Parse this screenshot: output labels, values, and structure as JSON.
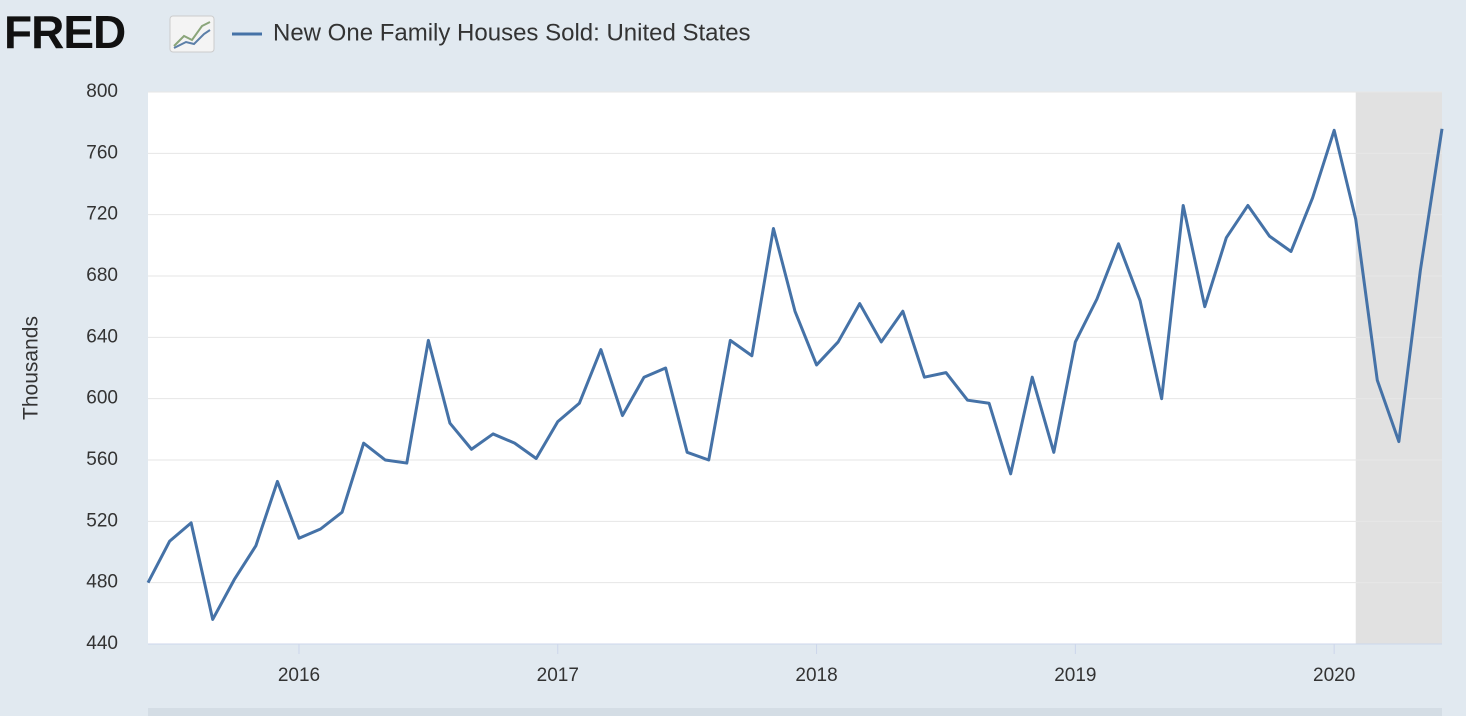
{
  "chart_data": {
    "type": "line",
    "logo": "FRED",
    "title": "New One Family Houses Sold: United States",
    "y_label": "Thousands",
    "x": [
      "2015-06",
      "2015-07",
      "2015-08",
      "2015-09",
      "2015-10",
      "2015-11",
      "2015-12",
      "2016-01",
      "2016-02",
      "2016-03",
      "2016-04",
      "2016-05",
      "2016-06",
      "2016-07",
      "2016-08",
      "2016-09",
      "2016-10",
      "2016-11",
      "2016-12",
      "2017-01",
      "2017-02",
      "2017-03",
      "2017-04",
      "2017-05",
      "2017-06",
      "2017-07",
      "2017-08",
      "2017-09",
      "2017-10",
      "2017-11",
      "2017-12",
      "2018-01",
      "2018-02",
      "2018-03",
      "2018-04",
      "2018-05",
      "2018-06",
      "2018-07",
      "2018-08",
      "2018-09",
      "2018-10",
      "2018-11",
      "2018-12",
      "2019-01",
      "2019-02",
      "2019-03",
      "2019-04",
      "2019-05",
      "2019-06",
      "2019-07",
      "2019-08",
      "2019-09",
      "2019-10",
      "2019-11",
      "2019-12",
      "2020-01",
      "2020-02",
      "2020-03",
      "2020-04",
      "2020-05",
      "2020-06"
    ],
    "series": [
      {
        "name": "New One Family Houses Sold: United States",
        "color": "#4572a7",
        "values": [
          480,
          507,
          519,
          456,
          482,
          504,
          546,
          509,
          515,
          526,
          571,
          560,
          558,
          638,
          584,
          567,
          577,
          571,
          561,
          585,
          597,
          632,
          589,
          614,
          620,
          565,
          560,
          638,
          628,
          711,
          657,
          622,
          637,
          662,
          637,
          657,
          614,
          617,
          599,
          597,
          551,
          614,
          565,
          637,
          665,
          701,
          664,
          600,
          726,
          660,
          705,
          726,
          706,
          696,
          731,
          775,
          717,
          612,
          572,
          684,
          776
        ]
      }
    ],
    "xlim": [
      "2015-06",
      "2020-06"
    ],
    "xticks": [
      {
        "value": "2016-01",
        "label": "2016"
      },
      {
        "value": "2017-01",
        "label": "2017"
      },
      {
        "value": "2018-01",
        "label": "2018"
      },
      {
        "value": "2019-01",
        "label": "2019"
      },
      {
        "value": "2020-01",
        "label": "2020"
      }
    ],
    "ylim": [
      440,
      800
    ],
    "yticks": [
      440,
      480,
      520,
      560,
      600,
      640,
      680,
      720,
      760,
      800
    ],
    "grid": true,
    "recession": [
      "2020-02",
      "2020-06"
    ]
  }
}
